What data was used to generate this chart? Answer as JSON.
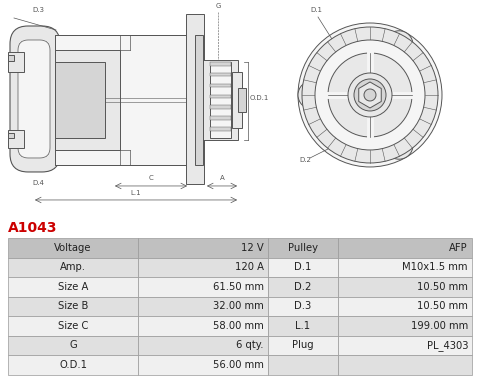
{
  "title": "A1043",
  "title_color": "#cc0000",
  "table_rows_all": [
    [
      "Voltage",
      "12 V",
      "Pulley",
      "AFP"
    ],
    [
      "Amp.",
      "120 A",
      "D.1",
      "M10x1.5 mm"
    ],
    [
      "Size A",
      "61.50 mm",
      "D.2",
      "10.50 mm"
    ],
    [
      "Size B",
      "32.00 mm",
      "D.3",
      "10.50 mm"
    ],
    [
      "Size C",
      "58.00 mm",
      "L.1",
      "199.00 mm"
    ],
    [
      "G",
      "6 qty.",
      "Plug",
      "PL_4303"
    ],
    [
      "O.D.1",
      "56.00 mm",
      "",
      ""
    ]
  ],
  "header_bg": "#c0c0c0",
  "odd_row_bg": "#e0e0e0",
  "even_row_bg": "#f0f0f0",
  "border_color": "#999999",
  "text_color": "#222222",
  "dim_color": "#555555",
  "line_color": "#555555",
  "fill_light": "#f5f5f5",
  "fill_mid": "#e8e8e8",
  "fill_dark": "#d5d5d5",
  "bg_color": "#ffffff"
}
